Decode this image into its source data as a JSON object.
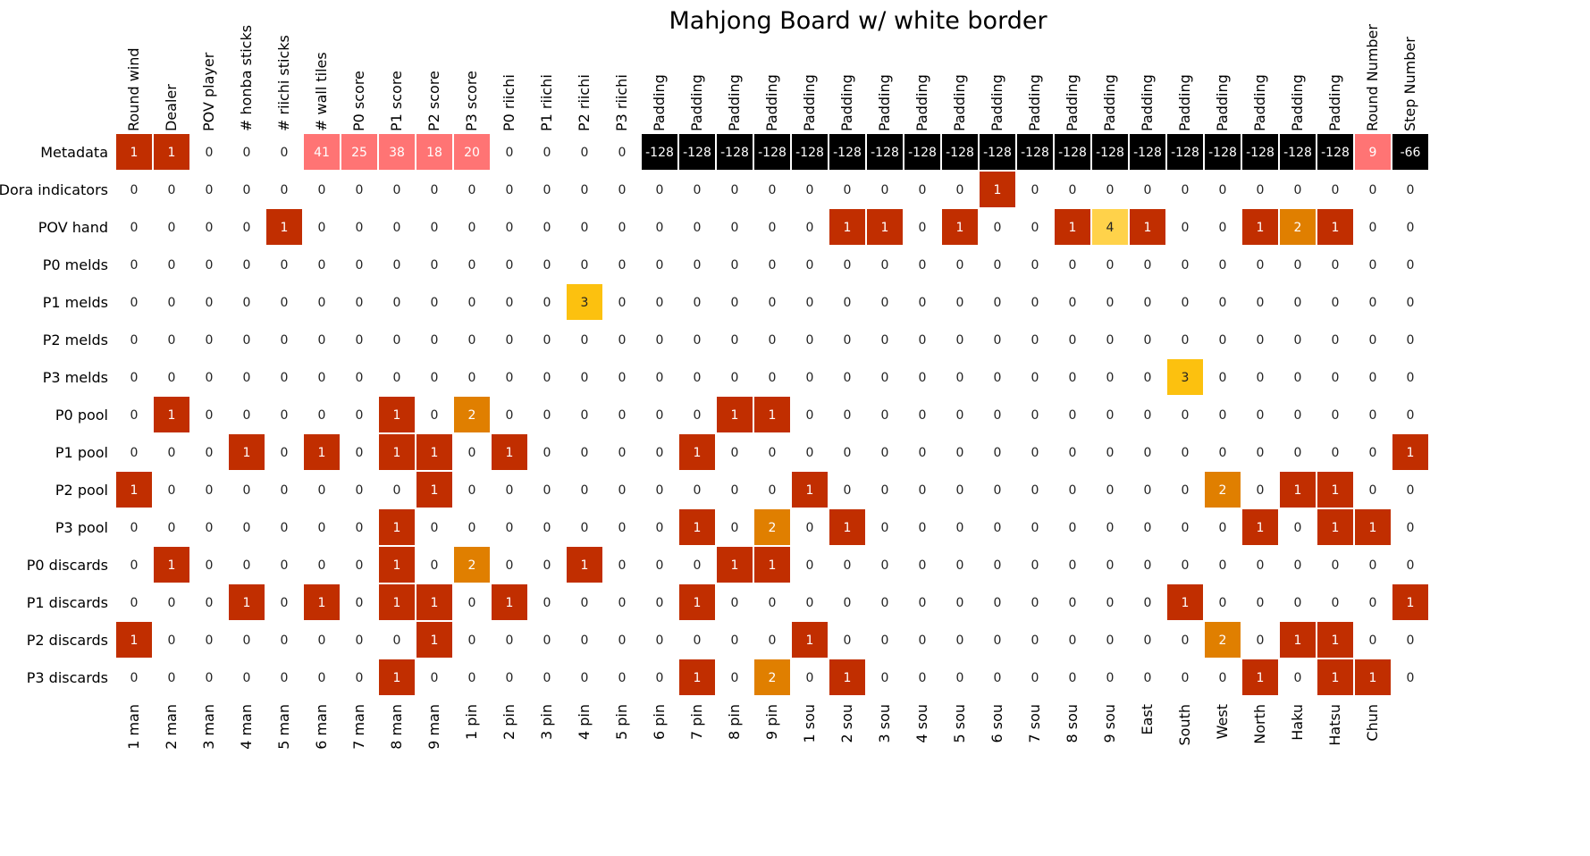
{
  "chart_data": {
    "type": "heatmap",
    "title": "Mahjong Board w/ white border",
    "top_labels": [
      "Round wind",
      "Dealer",
      "POV player",
      "# honba sticks",
      "# riichi sticks",
      "# wall tiles",
      "P0 score",
      "P1 score",
      "P2 score",
      "P3 score",
      "P0 riichi",
      "P1 riichi",
      "P2 riichi",
      "P3 riichi",
      "Padding",
      "Padding",
      "Padding",
      "Padding",
      "Padding",
      "Padding",
      "Padding",
      "Padding",
      "Padding",
      "Padding",
      "Padding",
      "Padding",
      "Padding",
      "Padding",
      "Padding",
      "Padding",
      "Padding",
      "Padding",
      "Padding",
      "Round Number",
      "Step Number"
    ],
    "bottom_labels": [
      "1 man",
      "2 man",
      "3 man",
      "4 man",
      "5 man",
      "6 man",
      "7 man",
      "8 man",
      "9 man",
      "1 pin",
      "2 pin",
      "3 pin",
      "4 pin",
      "5 pin",
      "6 pin",
      "7 pin",
      "8 pin",
      "9 pin",
      "1 sou",
      "2 sou",
      "3 sou",
      "4 sou",
      "5 sou",
      "6 sou",
      "7 sou",
      "8 sou",
      "9 sou",
      "East",
      "South",
      "West",
      "North",
      "Haku",
      "Hatsu",
      "Chun"
    ],
    "row_labels": [
      "Metadata",
      "Dora indicators",
      "POV hand",
      "P0 melds",
      "P1 melds",
      "P2 melds",
      "P3 melds",
      "P0 pool",
      "P1 pool",
      "P2 pool",
      "P3 pool",
      "P0 discards",
      "P1 discards",
      "P2 discards",
      "P3 discards"
    ],
    "values": [
      [
        1,
        1,
        0,
        0,
        0,
        41,
        25,
        38,
        18,
        20,
        0,
        0,
        0,
        0,
        -128,
        -128,
        -128,
        -128,
        -128,
        -128,
        -128,
        -128,
        -128,
        -128,
        -128,
        -128,
        -128,
        -128,
        -128,
        -128,
        -128,
        -128,
        -128,
        9,
        -66
      ],
      [
        0,
        0,
        0,
        0,
        0,
        0,
        0,
        0,
        0,
        0,
        0,
        0,
        0,
        0,
        0,
        0,
        0,
        0,
        0,
        0,
        0,
        0,
        0,
        1,
        0,
        0,
        0,
        0,
        0,
        0,
        0,
        0,
        0,
        0,
        0
      ],
      [
        0,
        0,
        0,
        0,
        1,
        0,
        0,
        0,
        0,
        0,
        0,
        0,
        0,
        0,
        0,
        0,
        0,
        0,
        0,
        1,
        1,
        0,
        1,
        0,
        0,
        1,
        4,
        1,
        0,
        0,
        1,
        2,
        1,
        0,
        0
      ],
      [
        0,
        0,
        0,
        0,
        0,
        0,
        0,
        0,
        0,
        0,
        0,
        0,
        0,
        0,
        0,
        0,
        0,
        0,
        0,
        0,
        0,
        0,
        0,
        0,
        0,
        0,
        0,
        0,
        0,
        0,
        0,
        0,
        0,
        0,
        0
      ],
      [
        0,
        0,
        0,
        0,
        0,
        0,
        0,
        0,
        0,
        0,
        0,
        0,
        3,
        0,
        0,
        0,
        0,
        0,
        0,
        0,
        0,
        0,
        0,
        0,
        0,
        0,
        0,
        0,
        0,
        0,
        0,
        0,
        0,
        0,
        0
      ],
      [
        0,
        0,
        0,
        0,
        0,
        0,
        0,
        0,
        0,
        0,
        0,
        0,
        0,
        0,
        0,
        0,
        0,
        0,
        0,
        0,
        0,
        0,
        0,
        0,
        0,
        0,
        0,
        0,
        0,
        0,
        0,
        0,
        0,
        0,
        0
      ],
      [
        0,
        0,
        0,
        0,
        0,
        0,
        0,
        0,
        0,
        0,
        0,
        0,
        0,
        0,
        0,
        0,
        0,
        0,
        0,
        0,
        0,
        0,
        0,
        0,
        0,
        0,
        0,
        0,
        3,
        0,
        0,
        0,
        0,
        0,
        0
      ],
      [
        0,
        1,
        0,
        0,
        0,
        0,
        0,
        1,
        0,
        2,
        0,
        0,
        0,
        0,
        0,
        0,
        1,
        1,
        0,
        0,
        0,
        0,
        0,
        0,
        0,
        0,
        0,
        0,
        0,
        0,
        0,
        0,
        0,
        0,
        0
      ],
      [
        0,
        0,
        0,
        1,
        0,
        1,
        0,
        1,
        1,
        0,
        1,
        0,
        0,
        0,
        0,
        1,
        0,
        0,
        0,
        0,
        0,
        0,
        0,
        0,
        0,
        0,
        0,
        0,
        0,
        0,
        0,
        0,
        0,
        0,
        1
      ],
      [
        1,
        0,
        0,
        0,
        0,
        0,
        0,
        0,
        1,
        0,
        0,
        0,
        0,
        0,
        0,
        0,
        0,
        0,
        1,
        0,
        0,
        0,
        0,
        0,
        0,
        0,
        0,
        0,
        0,
        2,
        0,
        1,
        1,
        0,
        0
      ],
      [
        0,
        0,
        0,
        0,
        0,
        0,
        0,
        1,
        0,
        0,
        0,
        0,
        0,
        0,
        0,
        1,
        0,
        2,
        0,
        1,
        0,
        0,
        0,
        0,
        0,
        0,
        0,
        0,
        0,
        0,
        1,
        0,
        1,
        1,
        0
      ],
      [
        0,
        1,
        0,
        0,
        0,
        0,
        0,
        1,
        0,
        2,
        0,
        0,
        1,
        0,
        0,
        0,
        1,
        1,
        0,
        0,
        0,
        0,
        0,
        0,
        0,
        0,
        0,
        0,
        0,
        0,
        0,
        0,
        0,
        0,
        0
      ],
      [
        0,
        0,
        0,
        1,
        0,
        1,
        0,
        1,
        1,
        0,
        1,
        0,
        0,
        0,
        0,
        1,
        0,
        0,
        0,
        0,
        0,
        0,
        0,
        0,
        0,
        0,
        0,
        0,
        1,
        0,
        0,
        0,
        0,
        0,
        1
      ],
      [
        1,
        0,
        0,
        0,
        0,
        0,
        0,
        0,
        1,
        0,
        0,
        0,
        0,
        0,
        0,
        0,
        0,
        0,
        1,
        0,
        0,
        0,
        0,
        0,
        0,
        0,
        0,
        0,
        0,
        2,
        0,
        1,
        1,
        0,
        0
      ],
      [
        0,
        0,
        0,
        0,
        0,
        0,
        0,
        1,
        0,
        0,
        0,
        0,
        0,
        0,
        0,
        1,
        0,
        2,
        0,
        1,
        0,
        0,
        0,
        0,
        0,
        0,
        0,
        0,
        0,
        0,
        1,
        0,
        1,
        1,
        0
      ]
    ],
    "colors": {
      "v1": "#c12e00",
      "v2": "#e07f00",
      "v3": "#fcc10f",
      "v4": "#ffd24a",
      "high": "#ff7474",
      "negative": "#000000",
      "text_dark": "#222222",
      "text_light": "#ffffff",
      "border": "#ffffff"
    }
  }
}
